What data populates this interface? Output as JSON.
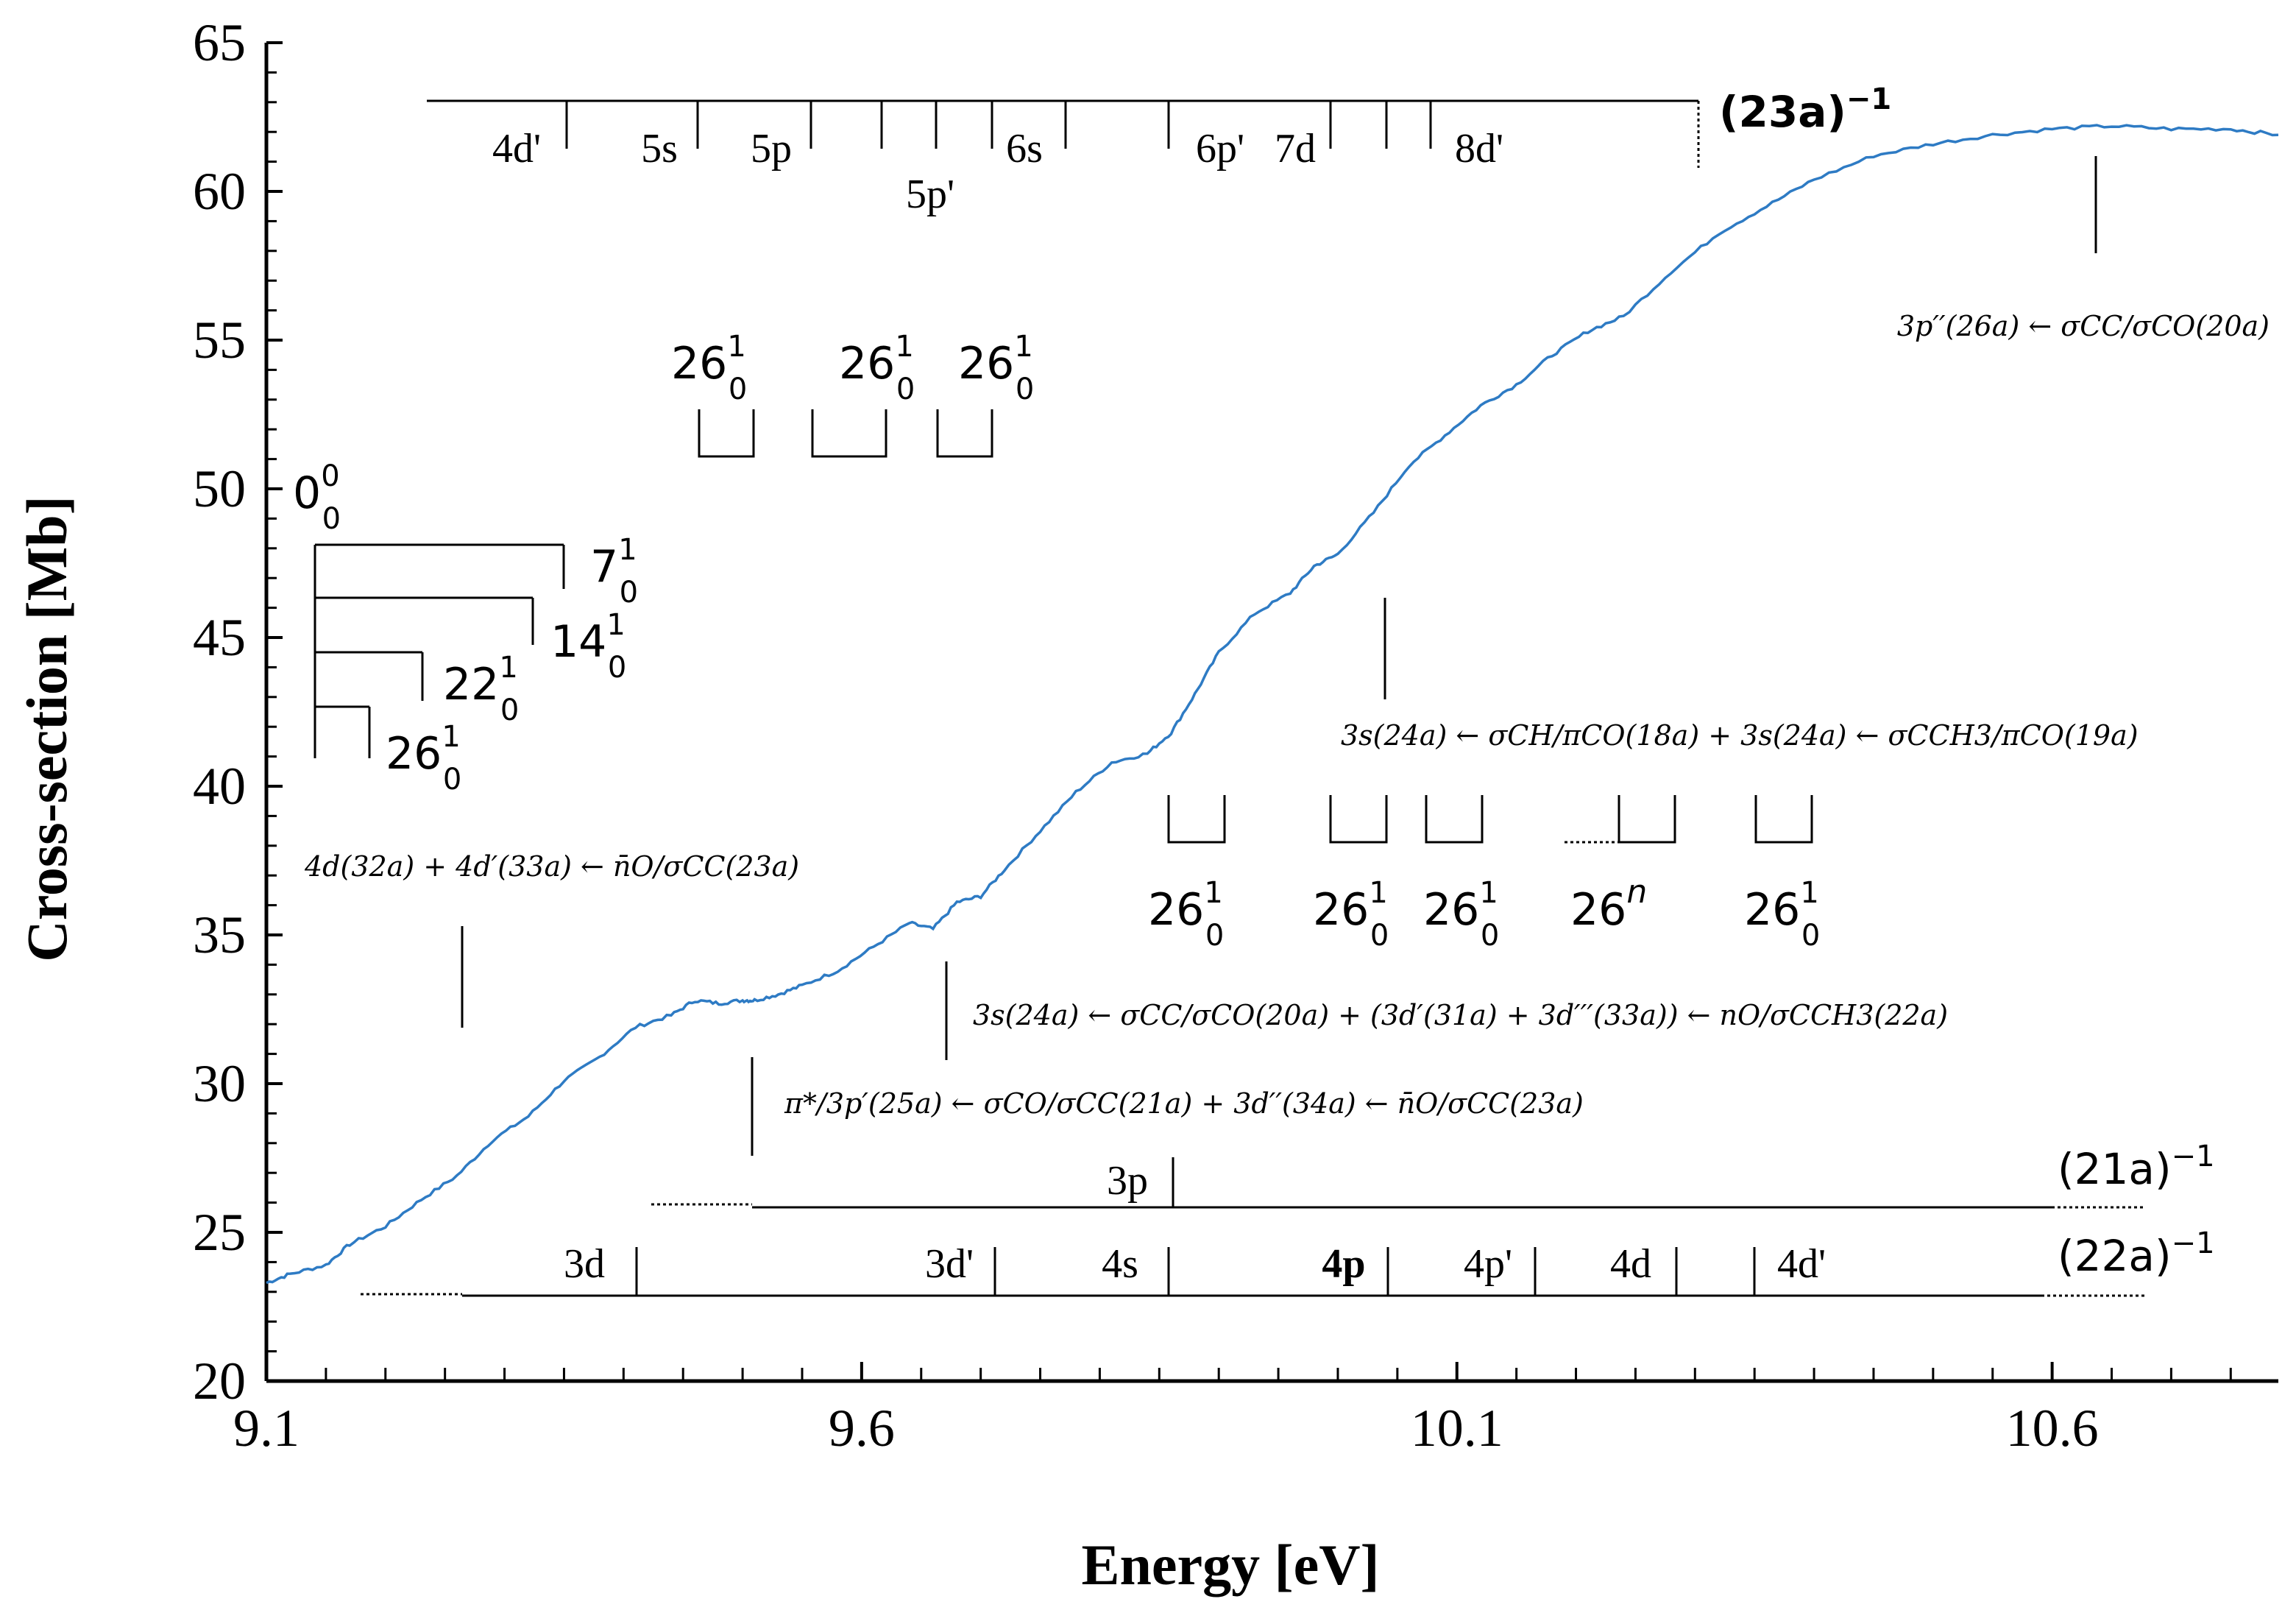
{
  "chart_data": {
    "type": "line",
    "xlabel": "Energy [eV]",
    "ylabel": "Cross-section [Mb]",
    "xlim": [
      9.1,
      10.79
    ],
    "ylim": [
      20,
      65
    ],
    "xticks": [
      9.1,
      9.6,
      10.1,
      10.6
    ],
    "xtick_labels": [
      "9.1",
      "9.6",
      "10.1",
      "10.6"
    ],
    "yticks": [
      20,
      25,
      30,
      35,
      40,
      45,
      50,
      55,
      60,
      65
    ],
    "ytick_labels": [
      "20",
      "25",
      "30",
      "35",
      "40",
      "45",
      "50",
      "55",
      "60",
      "65"
    ],
    "series": [
      {
        "name": "Cross-section",
        "color": "#2e7bc4",
        "x": [
          9.1,
          9.12,
          9.15,
          9.17,
          9.2,
          9.23,
          9.26,
          9.29,
          9.32,
          9.35,
          9.38,
          9.41,
          9.44,
          9.46,
          9.48,
          9.5,
          9.51,
          9.53,
          9.55,
          9.58,
          9.61,
          9.64,
          9.66,
          9.68,
          9.7,
          9.72,
          9.75,
          9.78,
          9.81,
          9.84,
          9.86,
          9.88,
          9.9,
          9.93,
          9.96,
          9.98,
          10.0,
          10.03,
          10.06,
          10.09,
          10.12,
          10.15,
          10.18,
          10.21,
          10.24,
          10.28,
          10.32,
          10.36,
          10.4,
          10.45,
          10.5,
          10.55,
          10.6,
          10.65,
          10.7,
          10.75,
          10.79
        ],
        "y": [
          23.3,
          23.6,
          23.9,
          24.6,
          25.2,
          26.1,
          26.9,
          28.1,
          28.9,
          30.1,
          30.9,
          31.9,
          32.3,
          32.8,
          32.7,
          32.8,
          32.8,
          33.0,
          33.3,
          33.8,
          34.6,
          35.4,
          35.2,
          36.1,
          36.3,
          37.2,
          38.5,
          39.8,
          40.8,
          41.1,
          41.8,
          43.1,
          44.5,
          45.8,
          46.5,
          47.4,
          47.8,
          49.2,
          50.8,
          51.8,
          52.8,
          53.5,
          54.5,
          55.3,
          55.8,
          57.3,
          58.6,
          59.5,
          60.4,
          61.2,
          61.6,
          61.9,
          62.1,
          62.2,
          62.1,
          62.1,
          61.9
        ]
      }
    ],
    "band_23a": {
      "label_base": "(23a)",
      "label_exp": "−1",
      "labels": [
        "4d'",
        "5s",
        "5p",
        "5p'",
        "6s",
        "6p'",
        "7d",
        "8d'"
      ]
    },
    "band_21a": {
      "label_base": "(21a)",
      "label_exp": "−1",
      "labels": [
        "3p"
      ]
    },
    "band_22a": {
      "label_base": "(22a)",
      "label_exp": "−1",
      "labels": [
        "3d",
        "3d'",
        "4s",
        "4p",
        "4p'",
        "4d",
        "4d'"
      ]
    },
    "vibrational_labels": [
      {
        "base": "0",
        "sup": "0",
        "sub": "0"
      },
      {
        "base": "7",
        "sup": "1",
        "sub": "0"
      },
      {
        "base": "14",
        "sup": "1",
        "sub": "0"
      },
      {
        "base": "22",
        "sup": "1",
        "sub": "0"
      },
      {
        "base": "26",
        "sup": "1",
        "sub": "0"
      },
      {
        "base": "26",
        "sup": "1",
        "sub": "0"
      },
      {
        "base": "26",
        "sup": "1",
        "sub": "0"
      },
      {
        "base": "26",
        "sup": "1",
        "sub": "0"
      },
      {
        "base": "26",
        "sup": "1",
        "sub": "0"
      },
      {
        "base": "26",
        "sup": "1",
        "sub": "0"
      },
      {
        "base": "26",
        "sup": "1",
        "sub": "0"
      },
      {
        "base": "26",
        "sup": "n",
        "sub": ""
      },
      {
        "base": "26",
        "sup": "1",
        "sub": "0"
      }
    ],
    "annotations": [
      "3p′′(26a) ← σCC/σCO(20a)",
      "3s(24a) ← σCH/πCO(18a) + 3s(24a) ← σCCH3/πCO(19a)",
      "4d(32a) + 4d′(33a) ← n̄O/σCC(23a)",
      "3s(24a) ← σCC/σCO(20a) + (3d′(31a) + 3d′′′(33a)) ← nO/σCCH3(22a)",
      "π*/3p′(25a) ← σCO/σCC(21a) + 3d′′(34a) ← n̄O/σCC(23a)"
    ]
  }
}
